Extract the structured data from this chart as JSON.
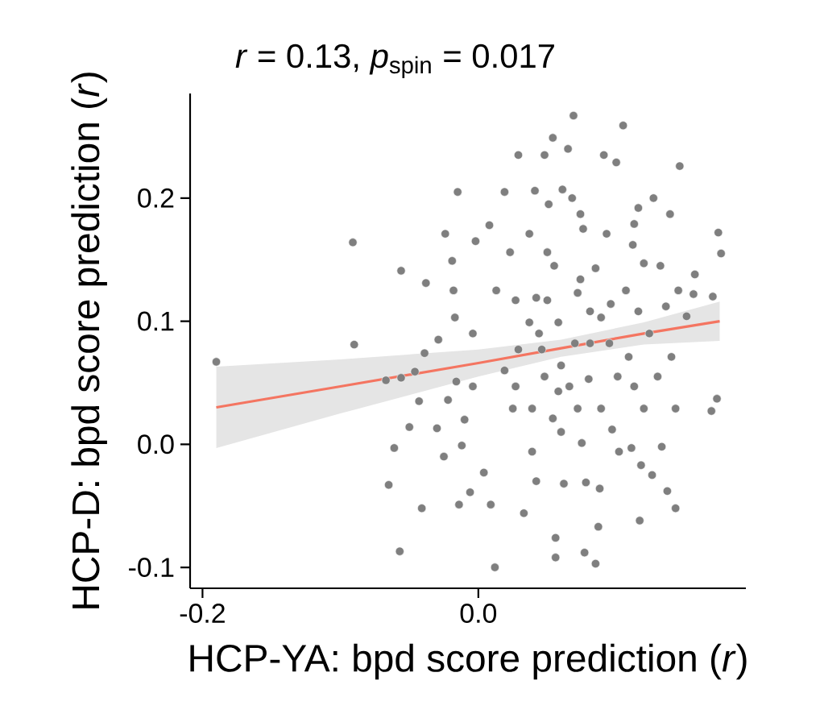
{
  "chart_data": {
    "type": "scatter",
    "title": "*r* = 0.13, *p*$_{spin}$ = 0.017",
    "xlabel": "HCP-YA: bpd score prediction (*r*)",
    "ylabel": "HCP-D: bpd score prediction (*r*)",
    "xlim": [
      -0.209,
      0.194
    ],
    "ylim": [
      -0.117,
      0.285
    ],
    "xticks": [
      -0.2,
      {
        "value": 0,
        "label": "0.0"
      }
    ],
    "yticks": [
      -0.1,
      {
        "value": 0,
        "label": "0.0"
      },
      0.1,
      0.2
    ],
    "series": [
      {
        "type": "line",
        "marker": "none",
        "color": "#f47561",
        "x": [
          -0.19,
          -0.1,
          0,
          0.06,
          0.12,
          0.175
        ],
        "values": [
          0.03,
          0.047,
          0.066,
          0.078,
          0.09,
          0.1
        ],
        "lower": [
          -0.003,
          0.025,
          0.055,
          0.071,
          0.081,
          0.084
        ],
        "upper": [
          0.063,
          0.069,
          0.077,
          0.085,
          0.099,
          0.116
        ]
      },
      {
        "marker": "circle",
        "color": "#7f7f7f",
        "x": [
          -0.19,
          -0.091,
          -0.09,
          -0.067,
          -0.061,
          -0.065,
          -0.057,
          -0.056,
          -0.056,
          -0.05,
          -0.046,
          -0.043,
          -0.041,
          -0.039,
          -0.038,
          -0.03,
          -0.029,
          -0.024,
          -0.025,
          -0.022,
          -0.019,
          -0.018,
          -0.017,
          -0.016,
          -0.015,
          -0.014,
          -0.012,
          -0.01,
          -0.006,
          -0.004,
          -0.002,
          -0.004,
          0.004,
          0.008,
          0.009,
          0.012,
          0.013,
          0.019,
          0.023,
          0.025,
          0.029,
          0.029,
          0.033,
          0.037,
          0.039,
          0.041,
          0.042,
          0.042,
          0.048,
          0.048,
          0.051,
          0.054,
          0.055,
          0.056,
          0.056,
          0.058,
          0.06,
          0.061,
          0.062,
          0.065,
          0.068,
          0.069,
          0.07,
          0.072,
          0.074,
          0.075,
          0.076,
          0.077,
          0.078,
          0.08,
          0.081,
          0.085,
          0.085,
          0.087,
          0.088,
          0.089,
          0.091,
          0.093,
          0.095,
          0.096,
          0.097,
          0.1,
          0.102,
          0.105,
          0.107,
          0.109,
          0.111,
          0.112,
          0.113,
          0.116,
          0.116,
          0.117,
          0.118,
          0.12,
          0.124,
          0.126,
          0.127,
          0.13,
          0.132,
          0.133,
          0.136,
          0.137,
          0.139,
          0.14,
          0.143,
          0.143,
          0.145,
          0.146,
          0.151,
          0.156,
          0.157,
          0.17,
          0.169,
          0.173,
          0.174,
          0.176,
          0.027,
          0.037,
          0.044,
          0.05,
          0.06,
          0.066,
          0.072,
          0.054,
          0.039,
          0.019,
          0.027,
          0.046,
          0.081,
          0.089,
          0.101,
          0.113,
          0.12,
          0.05,
          0.074,
          0.058
        ],
        "values": [
          0.067,
          0.164,
          0.081,
          0.052,
          -0.003,
          -0.033,
          -0.087,
          0.141,
          0.054,
          0.014,
          0.059,
          0.035,
          -0.052,
          0.074,
          0.131,
          0.013,
          0.085,
          0.171,
          -0.01,
          0.036,
          0.149,
          0.125,
          0.103,
          0.051,
          0.205,
          -0.049,
          -0.001,
          0.02,
          -0.039,
          0.09,
          0.165,
          0.047,
          -0.023,
          0.178,
          -0.049,
          -0.1,
          0.125,
          0.205,
          0.156,
          0.029,
          0.235,
          0.077,
          -0.056,
          0.171,
          -0.006,
          0.206,
          0.119,
          -0.03,
          0.235,
          0.055,
          0.195,
          0.249,
          0.145,
          -0.076,
          -0.092,
          0.099,
          0.01,
          0.207,
          -0.032,
          0.24,
          0.2,
          0.267,
          0.082,
          0.123,
          0.187,
          0.001,
          0.175,
          -0.088,
          -0.031,
          0.053,
          0.108,
          -0.097,
          0.143,
          -0.067,
          -0.036,
          0.029,
          0.235,
          0.171,
          0.082,
          0.114,
          0.012,
          0.229,
          -0.006,
          0.259,
          0.125,
          0.071,
          -0.003,
          0.162,
          0.179,
          0.108,
          0.192,
          -0.062,
          -0.017,
          0.147,
          0.09,
          -0.025,
          0.2,
          0.055,
          0.145,
          -0.002,
          0.112,
          -0.038,
          0.187,
          0.071,
          -0.052,
          0.029,
          0.125,
          0.226,
          0.104,
          0.122,
          0.138,
          0.12,
          0.027,
          0.037,
          0.172,
          0.155,
          0.117,
          0.099,
          0.09,
          0.117,
          0.064,
          0.047,
          0.029,
          0.021,
          0.029,
          0.06,
          0.047,
          0.077,
          0.082,
          0.103,
          0.055,
          0.047,
          0.029,
          0.156,
          0.134,
          0.043
        ]
      }
    ]
  }
}
